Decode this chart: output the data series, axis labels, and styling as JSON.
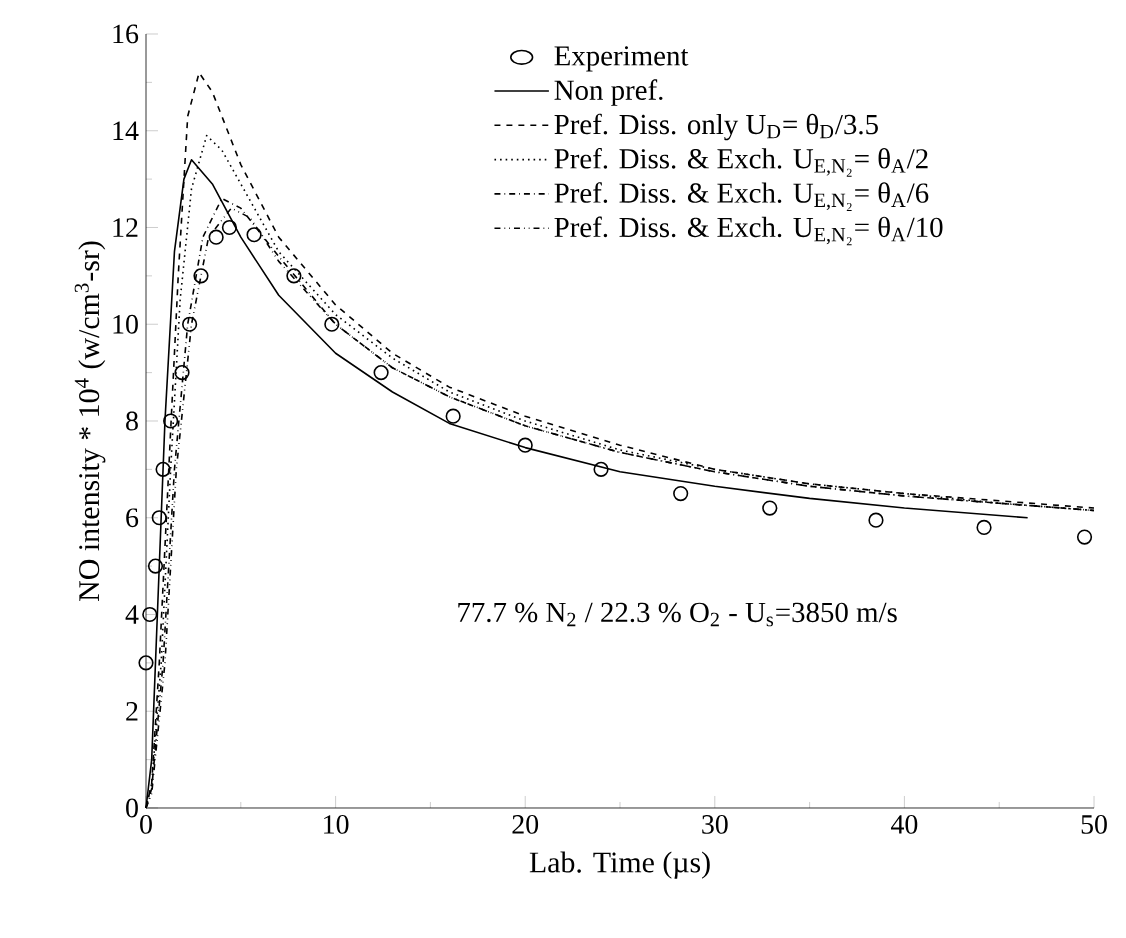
{
  "chart_data": {
    "type": "line",
    "xlabel": "Lab. Time (µs)",
    "ylabel": "NO intensity * 10$^{4}$ (w/cm$^{3}$-sr)",
    "xlim": [
      0,
      50
    ],
    "xticks": [
      0,
      10,
      20,
      30,
      40,
      50
    ],
    "ylim": [
      0,
      16
    ],
    "yticks": [
      0,
      2,
      4,
      6,
      8,
      10,
      12,
      14,
      16
    ],
    "legend": "top right",
    "annotations": [
      "77.7 % N$_{2}$ / 22.3 % O$_{2}$ - U$_{s}$=3850 m/s"
    ],
    "series": [
      {
        "name": "Experiment",
        "type": "scatter",
        "marker": "circle",
        "color": "#000000",
        "x": [
          0,
          0.2,
          0.5,
          0.7,
          0.9,
          1.3,
          1.9,
          2.3,
          2.9,
          3.7,
          4.4,
          5.7,
          7.8,
          9.8,
          12.4,
          16.2,
          20.0,
          24.0,
          28.2,
          32.9,
          38.5,
          44.2,
          49.5
        ],
        "values": [
          3.0,
          4.0,
          5.0,
          6.0,
          7.0,
          8.0,
          9.0,
          10.0,
          11.0,
          11.8,
          12.0,
          11.85,
          11.0,
          10.0,
          9.0,
          8.1,
          7.5,
          7.0,
          6.5,
          6.2,
          5.95,
          5.8,
          5.6
        ]
      },
      {
        "name": "Non pref.",
        "line_style": "solid",
        "color": "#000000",
        "x": [
          0,
          0.3,
          0.6,
          1.0,
          1.5,
          2.0,
          2.4,
          3.5,
          5,
          7,
          10,
          13,
          16,
          20,
          25,
          30,
          35,
          40,
          46.5
        ],
        "values": [
          0,
          1,
          4,
          8,
          11.5,
          13,
          13.4,
          12.9,
          11.8,
          10.6,
          9.4,
          8.6,
          7.95,
          7.45,
          6.95,
          6.65,
          6.4,
          6.2,
          6.0
        ]
      },
      {
        "name": "Pref. Diss. only  U$_{D}$= θ$_{D}$/3.5",
        "line_style": "dashed",
        "color": "#000000",
        "x": [
          0,
          0.3,
          0.7,
          1.2,
          1.7,
          2.2,
          2.8,
          3.5,
          5,
          7,
          10,
          13,
          16,
          20,
          25,
          30,
          35,
          40,
          45,
          50
        ],
        "values": [
          0,
          0.5,
          3,
          7,
          11,
          14.3,
          15.2,
          14.8,
          13.3,
          11.8,
          10.4,
          9.4,
          8.7,
          8.1,
          7.5,
          7.0,
          6.7,
          6.5,
          6.35,
          6.2
        ]
      },
      {
        "name": "Pref. Diss. & Exch.  U$_{E,N₂}$= θ$_{A}$/2",
        "line_style": "dotted",
        "color": "#000000",
        "x": [
          0,
          0.3,
          0.8,
          1.3,
          1.8,
          2.4,
          3.2,
          4,
          5,
          7,
          10,
          13,
          16,
          20,
          25,
          30,
          35,
          40,
          45,
          50
        ],
        "values": [
          0,
          0.5,
          3,
          7,
          10.5,
          12.8,
          13.9,
          13.6,
          12.9,
          11.5,
          10.2,
          9.3,
          8.6,
          8.0,
          7.4,
          7.0,
          6.7,
          6.5,
          6.3,
          6.15
        ]
      },
      {
        "name": "Pref. Diss. & Exch.   U$_{E,N₂}$= θ$_{A}$/6",
        "line_style": "dashdot",
        "color": "#000000",
        "x": [
          0,
          0.3,
          0.9,
          1.5,
          2.2,
          3.0,
          4.0,
          5,
          7,
          10,
          13,
          16,
          20,
          25,
          30,
          35,
          40,
          45,
          50
        ],
        "values": [
          0,
          0.4,
          3,
          7,
          10,
          11.8,
          12.6,
          12.4,
          11.4,
          10.0,
          9.1,
          8.5,
          7.9,
          7.35,
          6.95,
          6.65,
          6.45,
          6.3,
          6.15
        ]
      },
      {
        "name": "Pref. Diss. & Exch.   U$_{E,N₂}$= θ$_{A}$/10",
        "line_style": "dashdotdot",
        "color": "#000000",
        "x": [
          0,
          0.3,
          1.0,
          1.6,
          2.4,
          3.3,
          4.5,
          5.5,
          7,
          10,
          13,
          16,
          20,
          25,
          30,
          35,
          40,
          45,
          50
        ],
        "values": [
          0,
          0.3,
          3,
          7,
          10,
          11.8,
          12.4,
          12.2,
          11.3,
          10.0,
          9.1,
          8.5,
          7.9,
          7.35,
          6.95,
          6.65,
          6.45,
          6.3,
          6.15
        ]
      }
    ]
  }
}
